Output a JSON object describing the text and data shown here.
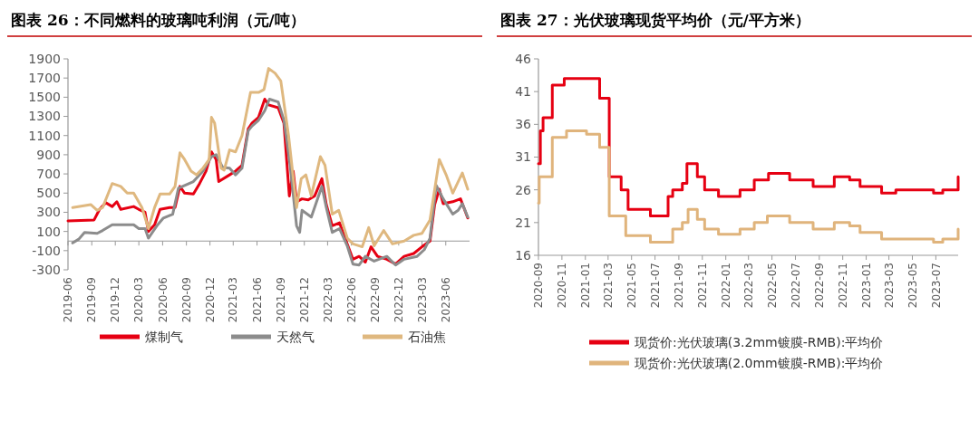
{
  "chart_data": [
    {
      "type": "line",
      "title": "图表 26：不同燃料的玻璃吨利润（元/吨）",
      "xlim": [
        "2019-06-01",
        "2023-09-01"
      ],
      "xticks": [
        {
          "value": "2019-06",
          "label": "2019-06"
        },
        {
          "value": "2019-09",
          "label": "2019-09"
        },
        {
          "value": "2019-12",
          "label": "2019-12"
        },
        {
          "value": "2020-03",
          "label": "2020-03"
        },
        {
          "value": "2020-06",
          "label": "2020-06"
        },
        {
          "value": "2020-09",
          "label": "2020-09"
        },
        {
          "value": "2020-12",
          "label": "2020-12"
        },
        {
          "value": "2021-03",
          "label": "2021-03"
        },
        {
          "value": "2021-06",
          "label": "2021-06"
        },
        {
          "value": "2021-09",
          "label": "2021-09"
        },
        {
          "value": "2021-12",
          "label": "2021-12"
        },
        {
          "value": "2022-03",
          "label": "2022-03"
        },
        {
          "value": "2022-06",
          "label": "2022-06"
        },
        {
          "value": "2022-09",
          "label": "2022-09"
        },
        {
          "value": "2022-12",
          "label": "2022-12"
        },
        {
          "value": "2023-03",
          "label": "2023-03"
        },
        {
          "value": "2023-06",
          "label": "2023-06"
        }
      ],
      "ylim": [
        -300,
        1900
      ],
      "yticks": [
        -300,
        -100,
        100,
        300,
        500,
        700,
        900,
        1100,
        1300,
        1500,
        1700,
        1900
      ],
      "legend": "bottom",
      "series": [
        {
          "name": "煤制气",
          "color": "#e60012",
          "x": [
            "2019-06-01",
            "2019-09-10",
            "2019-10-01",
            "2019-10-25",
            "2019-11-19",
            "2019-12-07",
            "2019-12-22",
            "2020-02-10",
            "2020-03-01",
            "2020-03-25",
            "2020-04-07",
            "2020-05-01",
            "2020-05-22",
            "2020-06-28",
            "2020-07-19",
            "2020-08-07",
            "2020-08-25",
            "2020-09-28",
            "2020-10-22",
            "2020-11-16",
            "2020-12-07",
            "2020-12-25",
            "2021-01-04",
            "2021-02-15",
            "2021-03-10",
            "2021-04-04",
            "2021-04-28",
            "2021-05-13",
            "2021-06-07",
            "2021-07-01",
            "2021-07-16",
            "2021-08-22",
            "2021-09-13",
            "2021-10-04",
            "2021-10-19",
            "2021-11-01",
            "2021-11-22",
            "2021-12-16",
            "2022-01-10",
            "2022-02-07",
            "2022-02-24",
            "2022-03-19",
            "2022-04-16",
            "2022-05-16",
            "2022-06-07",
            "2022-07-01",
            "2022-07-25",
            "2022-08-16",
            "2022-09-10",
            "2022-10-16",
            "2022-11-19",
            "2022-12-22",
            "2023-01-28",
            "2023-03-01",
            "2023-04-01",
            "2023-04-19",
            "2023-05-07",
            "2023-05-22",
            "2023-06-28",
            "2023-07-28",
            "2023-08-25"
          ],
          "values": [
            210,
            220,
            330,
            400,
            360,
            410,
            330,
            360,
            330,
            300,
            100,
            170,
            330,
            350,
            350,
            570,
            500,
            490,
            600,
            730,
            930,
            850,
            620,
            690,
            730,
            790,
            1170,
            1230,
            1290,
            1480,
            1420,
            1390,
            1230,
            470,
            730,
            410,
            440,
            430,
            470,
            650,
            380,
            160,
            190,
            -30,
            -190,
            -160,
            -220,
            -60,
            -160,
            -190,
            -240,
            -160,
            -130,
            -60,
            0,
            380,
            540,
            390,
            410,
            440,
            240
          ]
        },
        {
          "name": "天然气",
          "color": "#8c8c8c",
          "x": [
            "2019-06-19",
            "2019-07-13",
            "2019-08-04",
            "2019-09-22",
            "2019-10-13",
            "2019-11-19",
            "2020-02-10",
            "2020-03-01",
            "2020-03-25",
            "2020-04-07",
            "2020-05-10",
            "2020-06-04",
            "2020-07-10",
            "2020-08-01",
            "2020-08-25",
            "2020-09-28",
            "2020-11-04",
            "2020-12-07",
            "2020-12-25",
            "2021-01-19",
            "2021-02-15",
            "2021-03-10",
            "2021-04-04",
            "2021-04-28",
            "2021-05-13",
            "2021-06-07",
            "2021-07-01",
            "2021-07-19",
            "2021-08-22",
            "2021-09-13",
            "2021-10-07",
            "2021-11-01",
            "2021-11-13",
            "2021-11-22",
            "2021-12-28",
            "2022-02-07",
            "2022-02-24",
            "2022-03-19",
            "2022-04-16",
            "2022-05-16",
            "2022-06-07",
            "2022-07-01",
            "2022-07-25",
            "2022-08-28",
            "2022-10-16",
            "2022-11-19",
            "2022-12-22",
            "2023-02-10",
            "2023-03-10",
            "2023-04-01",
            "2023-04-25",
            "2023-05-22",
            "2023-06-28",
            "2023-07-19",
            "2023-08-04",
            "2023-08-25"
          ],
          "values": [
            -20,
            20,
            90,
            80,
            110,
            170,
            170,
            130,
            130,
            30,
            160,
            240,
            280,
            550,
            580,
            620,
            730,
            880,
            900,
            770,
            760,
            690,
            760,
            1150,
            1200,
            1260,
            1360,
            1480,
            1450,
            1260,
            790,
            160,
            90,
            320,
            250,
            570,
            350,
            90,
            130,
            -50,
            -240,
            -250,
            -160,
            -210,
            -160,
            -250,
            -190,
            -160,
            -90,
            30,
            580,
            440,
            280,
            320,
            390,
            250
          ]
        },
        {
          "name": "石油焦",
          "color": "#dfb87f",
          "x": [
            "2019-06-19",
            "2019-08-28",
            "2019-09-22",
            "2019-10-13",
            "2019-11-19",
            "2019-12-22",
            "2020-01-16",
            "2020-02-10",
            "2020-03-13",
            "2020-04-07",
            "2020-05-01",
            "2020-05-22",
            "2020-06-28",
            "2020-07-19",
            "2020-08-07",
            "2020-08-25",
            "2020-09-19",
            "2020-10-10",
            "2020-11-04",
            "2020-11-28",
            "2020-12-07",
            "2020-12-19",
            "2021-01-13",
            "2021-01-25",
            "2021-02-15",
            "2021-03-10",
            "2021-04-04",
            "2021-05-07",
            "2021-06-07",
            "2021-06-28",
            "2021-07-16",
            "2021-08-10",
            "2021-09-01",
            "2021-10-01",
            "2021-11-01",
            "2021-11-19",
            "2021-12-07",
            "2021-12-28",
            "2022-02-01",
            "2022-02-19",
            "2022-03-19",
            "2022-04-13",
            "2022-05-16",
            "2022-06-07",
            "2022-07-13",
            "2022-08-07",
            "2022-08-28",
            "2022-10-04",
            "2022-11-07",
            "2022-12-22",
            "2023-01-28",
            "2023-03-01",
            "2023-04-01",
            "2023-05-07",
            "2023-06-04",
            "2023-06-28",
            "2023-08-04",
            "2023-08-25"
          ],
          "values": [
            350,
            380,
            320,
            350,
            600,
            570,
            500,
            500,
            350,
            130,
            350,
            490,
            490,
            570,
            920,
            850,
            730,
            690,
            760,
            850,
            1290,
            1230,
            760,
            740,
            950,
            930,
            1100,
            1550,
            1550,
            1580,
            1800,
            1750,
            1670,
            1100,
            350,
            650,
            690,
            470,
            880,
            790,
            280,
            320,
            30,
            -30,
            -60,
            140,
            -50,
            110,
            -30,
            0,
            60,
            80,
            220,
            850,
            680,
            500,
            710,
            540
          ]
        }
      ]
    },
    {
      "type": "step",
      "title": "图表 27：光伏玻璃现货平均价（元/平方米）",
      "xlim": [
        "2020-09-01",
        "2023-08-28"
      ],
      "xticks": [
        {
          "value": "2020-09",
          "label": "2020-09"
        },
        {
          "value": "2020-11",
          "label": "2020-11"
        },
        {
          "value": "2021-01",
          "label": "2021-01"
        },
        {
          "value": "2021-03",
          "label": "2021-03"
        },
        {
          "value": "2021-05",
          "label": "2021-05"
        },
        {
          "value": "2021-07",
          "label": "2021-07"
        },
        {
          "value": "2021-09",
          "label": "2021-09"
        },
        {
          "value": "2021-11",
          "label": "2021-11"
        },
        {
          "value": "2022-01",
          "label": "2022-01"
        },
        {
          "value": "2022-03",
          "label": "2022-03"
        },
        {
          "value": "2022-05",
          "label": "2022-05"
        },
        {
          "value": "2022-07",
          "label": "2022-07"
        },
        {
          "value": "2022-09",
          "label": "2022-09"
        },
        {
          "value": "2022-11",
          "label": "2022-11"
        },
        {
          "value": "2023-01",
          "label": "2023-01"
        },
        {
          "value": "2023-03",
          "label": "2023-03"
        },
        {
          "value": "2023-05",
          "label": "2023-05"
        },
        {
          "value": "2023-07",
          "label": "2023-07"
        }
      ],
      "ylim": [
        16,
        46
      ],
      "yticks": [
        16,
        21,
        26,
        31,
        36,
        41,
        46
      ],
      "legend": "bottom",
      "series": [
        {
          "name": "现货价:光伏玻璃(3.2mm镀膜-RMB):平均价",
          "color": "#e60012",
          "x": [
            "2020-09-01",
            "2020-09-06",
            "2020-09-13",
            "2020-10-07",
            "2020-11-07",
            "2021-02-07",
            "2021-03-04",
            "2021-04-04",
            "2021-04-22",
            "2021-06-19",
            "2021-08-04",
            "2021-08-16",
            "2021-09-10",
            "2021-09-22",
            "2021-10-19",
            "2021-11-07",
            "2021-12-13",
            "2022-02-07",
            "2022-03-16",
            "2022-04-22",
            "2022-06-16",
            "2022-08-16",
            "2022-10-10",
            "2022-11-19",
            "2022-12-16",
            "2023-02-10",
            "2023-03-19",
            "2023-06-25",
            "2023-07-19",
            "2023-08-28"
          ],
          "values": [
            30,
            35,
            37,
            42,
            43,
            40,
            28,
            26,
            23,
            22,
            25,
            26,
            27,
            30,
            28,
            26,
            25,
            26,
            27.5,
            28.5,
            27.5,
            26.5,
            28,
            27.5,
            26.5,
            25.5,
            26,
            25.5,
            26,
            28
          ]
        },
        {
          "name": "现货价:光伏玻璃(2.0mm镀膜-RMB):平均价",
          "color": "#e0b47c",
          "x": [
            "2020-09-01",
            "2020-09-03",
            "2020-10-07",
            "2020-11-13",
            "2021-01-04",
            "2021-02-07",
            "2021-03-04",
            "2021-04-16",
            "2021-06-19",
            "2021-08-16",
            "2021-09-10",
            "2021-09-25",
            "2021-10-19",
            "2021-11-07",
            "2021-12-13",
            "2022-02-07",
            "2022-03-16",
            "2022-04-19",
            "2022-06-16",
            "2022-08-16",
            "2022-10-10",
            "2022-11-19",
            "2022-12-16",
            "2023-02-10",
            "2023-06-25",
            "2023-07-19",
            "2023-08-28"
          ],
          "values": [
            24,
            28,
            34,
            35,
            34.5,
            32.5,
            22,
            19,
            18,
            20,
            21,
            23,
            21.5,
            20,
            19.2,
            20,
            21,
            22,
            21,
            20,
            21,
            20.5,
            19.5,
            18.5,
            18,
            18.5,
            20
          ]
        }
      ]
    }
  ]
}
